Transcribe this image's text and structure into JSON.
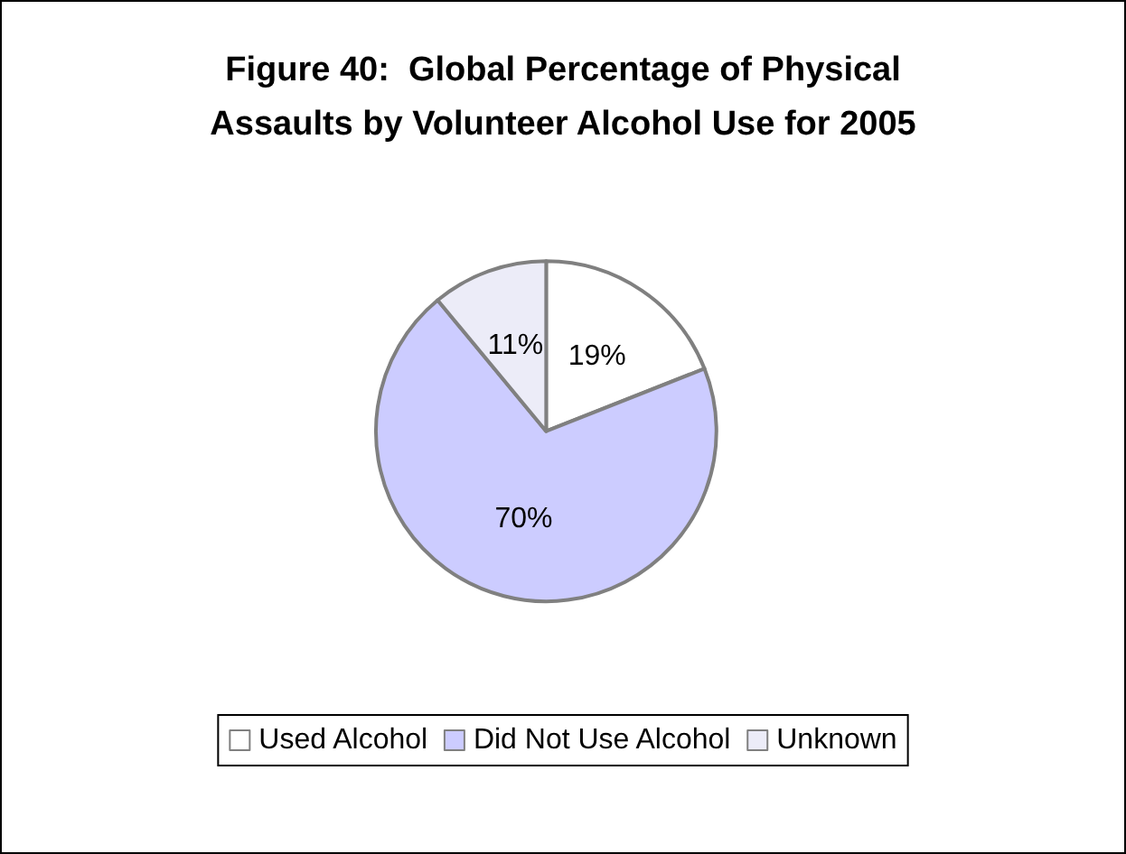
{
  "chart_data": {
    "type": "pie",
    "title": "Figure 40:  Global Percentage of Physical\nAssaults by Volunteer Alcohol Use for 2005",
    "categories": [
      "Used Alcohol",
      "Did Not Use Alcohol",
      "Unknown"
    ],
    "values": [
      19,
      70,
      11
    ],
    "colors": [
      "#ffffff",
      "#ccccff",
      "#ececf8"
    ],
    "value_labels": [
      "19%",
      "70%",
      "11%"
    ],
    "legend": "bottom"
  }
}
